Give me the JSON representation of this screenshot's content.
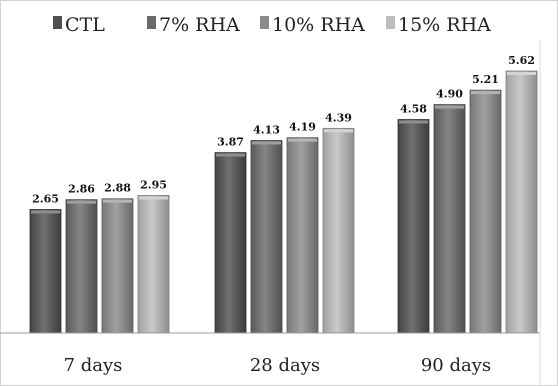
{
  "chart_data": {
    "type": "bar",
    "title": "",
    "xlabel": "",
    "ylabel": "",
    "categories": [
      "7 days",
      "28 days",
      "90 days"
    ],
    "series": [
      {
        "name": "CTL",
        "values": [
          2.65,
          3.87,
          4.58
        ],
        "labels": [
          "2.65",
          "3.87",
          "4.58"
        ]
      },
      {
        "name": "7% RHA",
        "values": [
          2.86,
          4.13,
          4.9
        ],
        "labels": [
          "2.86",
          "4.13",
          "4.90"
        ]
      },
      {
        "name": "10% RHA",
        "values": [
          2.88,
          4.19,
          5.21
        ],
        "labels": [
          "2.88",
          "4.19",
          "5.21"
        ]
      },
      {
        "name": "15% RHA",
        "values": [
          2.95,
          4.39,
          5.62
        ],
        "labels": [
          "2.95",
          "4.39",
          "5.62"
        ]
      }
    ],
    "ylim": [
      0,
      6.5
    ],
    "grid": false,
    "legend_position": "top",
    "series_colors": [
      "#505050",
      "#6a6a6a",
      "#8c8c8c",
      "#bdbdbd"
    ]
  }
}
